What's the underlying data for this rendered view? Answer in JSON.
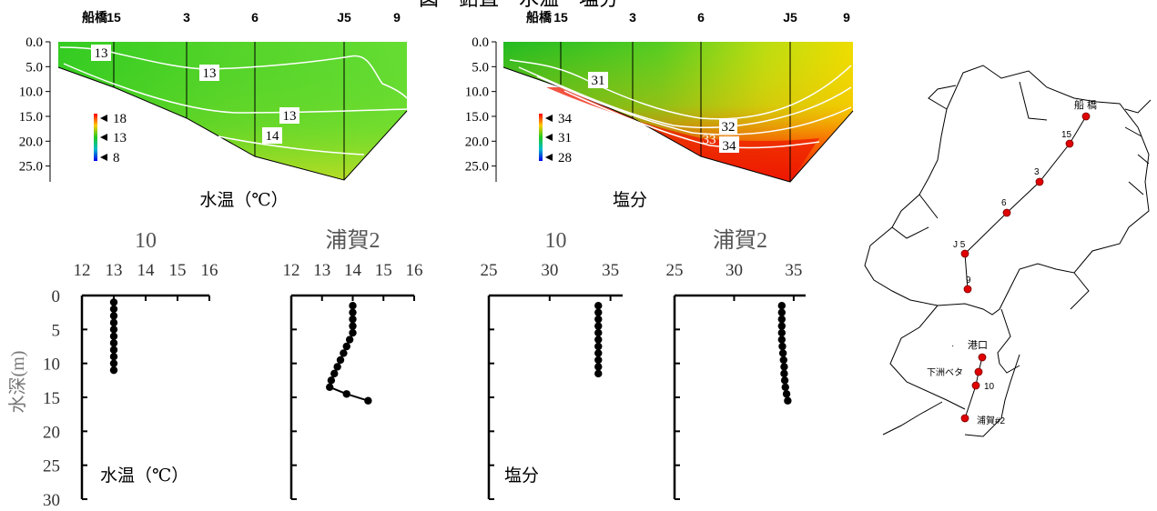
{
  "figure": {
    "title_fragment": "図　鉛直・水温・塩分"
  },
  "chart_data": [
    {
      "type": "heatmap",
      "panel": "section-temperature",
      "label": "水温（℃）",
      "stations": [
        "船橋",
        "15",
        "3",
        "6",
        "J5",
        "9"
      ],
      "y_ticks": [
        "0.0",
        "5.0",
        "10.0",
        "15.0",
        "20.0",
        "25.0"
      ],
      "ylim": [
        0,
        28
      ],
      "colorbar": [
        "18",
        "13",
        "8"
      ],
      "contour_labels": [
        "13",
        "13",
        "13",
        "14"
      ]
    },
    {
      "type": "heatmap",
      "panel": "section-salinity",
      "label": "塩分",
      "stations": [
        "船橋",
        "15",
        "3",
        "6",
        "J5",
        "9"
      ],
      "y_ticks": [
        "0.0",
        "5.0",
        "10.0",
        "15.0",
        "20.0",
        "25.0"
      ],
      "ylim": [
        0,
        28
      ],
      "colorbar": [
        "34",
        "31",
        "28"
      ],
      "contour_labels": [
        "31",
        "32",
        "33",
        "34"
      ]
    },
    {
      "type": "line",
      "panel": "profile-temp-10",
      "title": "10",
      "x_ticks": [
        "12",
        "13",
        "14",
        "15",
        "16"
      ],
      "xlim": [
        12,
        16
      ],
      "ylim": [
        0,
        30
      ],
      "y_ticks": [
        "0",
        "5",
        "10",
        "15",
        "20",
        "25",
        "30"
      ],
      "ylabel": "水深(m)",
      "note": "水温（℃）",
      "x": [
        13.0,
        13.0,
        13.0,
        13.0,
        13.0,
        13.0,
        13.0,
        13.0,
        13.0,
        13.0,
        13.0
      ],
      "y": [
        1,
        2,
        3,
        4,
        5,
        6,
        7,
        8,
        9,
        10,
        11
      ]
    },
    {
      "type": "line",
      "panel": "profile-temp-uraga2",
      "title": "浦賀2",
      "x_ticks": [
        "12",
        "13",
        "14",
        "15",
        "16"
      ],
      "xlim": [
        12,
        16
      ],
      "ylim": [
        0,
        30
      ],
      "x": [
        14.0,
        14.0,
        14.0,
        14.0,
        14.0,
        13.9,
        13.8,
        13.7,
        13.6,
        13.5,
        13.4,
        13.3,
        13.25,
        13.8,
        14.5
      ],
      "y": [
        1.5,
        2.5,
        3.5,
        4.5,
        5.5,
        6.5,
        7.5,
        8.5,
        9.5,
        10.5,
        11.5,
        12.5,
        13.5,
        14.5,
        15.5
      ]
    },
    {
      "type": "line",
      "panel": "profile-sal-10",
      "title": "10",
      "x_ticks": [
        "25",
        "30",
        "35"
      ],
      "xlim": [
        25,
        36
      ],
      "ylim": [
        0,
        30
      ],
      "note": "塩分",
      "x": [
        34.0,
        34.0,
        34.0,
        34.0,
        34.0,
        34.0,
        34.0,
        34.0,
        34.0,
        34.0,
        34.0
      ],
      "y": [
        1.5,
        2.5,
        3.5,
        4.5,
        5.5,
        6.5,
        7.5,
        8.5,
        9.5,
        10.5,
        11.5
      ]
    },
    {
      "type": "line",
      "panel": "profile-sal-uraga2",
      "title": "浦賀2",
      "x_ticks": [
        "25",
        "30",
        "35"
      ],
      "xlim": [
        25,
        36
      ],
      "ylim": [
        0,
        30
      ],
      "x": [
        34.0,
        34.0,
        34.0,
        34.0,
        34.0,
        34.0,
        34.05,
        34.1,
        34.15,
        34.2,
        34.2,
        34.25,
        34.3,
        34.4,
        34.5
      ],
      "y": [
        1.5,
        2.5,
        3.5,
        4.5,
        5.5,
        6.5,
        7.5,
        8.5,
        9.5,
        10.5,
        11.5,
        12.5,
        13.5,
        14.5,
        15.5
      ]
    }
  ],
  "map": {
    "stations": [
      "船 橋",
      "15",
      "3",
      "6",
      "J 5",
      "9",
      "港口",
      "下洲ベタ",
      "10",
      "浦賀#2"
    ]
  },
  "colors": {
    "red_marker": "#e00000",
    "contour": "#ffffff"
  }
}
